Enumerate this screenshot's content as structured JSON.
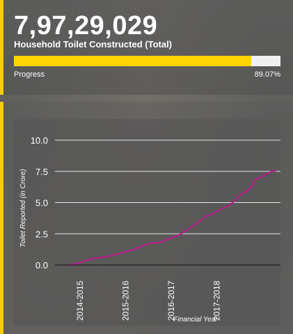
{
  "summary": {
    "total": "7,97,29,029",
    "title": "Household Toilet Constructed (Total)",
    "progress_label": "Progress",
    "progress_text": "89.07%",
    "progress_fraction": 0.8907
  },
  "colors": {
    "accent": "#f5cd00",
    "progress_fill": "#ffd400",
    "progress_track": "#f0f0f0",
    "line": "#c0188c"
  },
  "chart_data": {
    "type": "line",
    "xlabel": "Financial Year",
    "ylabel": "Toilet Reported (in Crore)",
    "ylim": [
      0,
      10
    ],
    "yticks": [
      "0.0",
      "2.5",
      "5.0",
      "7.5",
      "10.0"
    ],
    "xticks": [
      "2014-2015",
      "2015-2016",
      "2016-2017",
      "2017-2018"
    ],
    "grid": true,
    "series": [
      {
        "x": [
          2014.0,
          2014.15,
          2014.3,
          2014.4,
          2014.5,
          2014.6,
          2014.8,
          2015.0,
          2015.2,
          2015.4,
          2015.5,
          2015.6,
          2015.8,
          2016.0,
          2016.1,
          2016.2,
          2016.4,
          2016.6,
          2016.8,
          2016.9,
          2017.0,
          2017.1,
          2017.15,
          2017.25,
          2017.4,
          2017.5,
          2017.6,
          2017.7,
          2017.8,
          2017.9,
          2018.0,
          2018.1,
          2018.15,
          2018.25,
          2018.35,
          2018.45,
          2018.55
        ],
        "y": [
          0.0,
          0.1,
          0.25,
          0.35,
          0.5,
          0.55,
          0.65,
          0.8,
          1.0,
          1.2,
          1.35,
          1.5,
          1.75,
          1.8,
          1.95,
          2.1,
          2.35,
          2.8,
          3.3,
          3.55,
          3.9,
          4.0,
          4.05,
          4.3,
          4.55,
          4.75,
          5.0,
          5.35,
          5.7,
          5.9,
          6.2,
          6.85,
          6.95,
          7.05,
          7.3,
          7.5,
          7.55
        ]
      }
    ]
  }
}
